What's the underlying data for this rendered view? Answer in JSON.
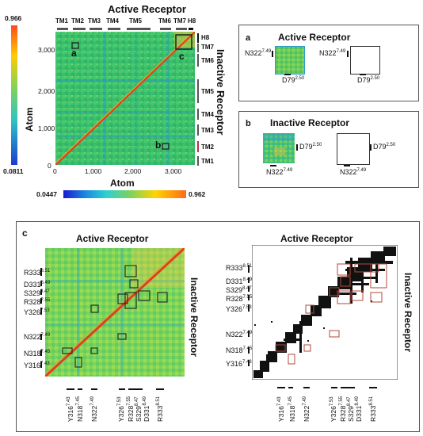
{
  "top_heatmap": {
    "title": "Active Receptor",
    "side_title": "Inactive Receptor",
    "x_label": "Atom",
    "y_label": "Atom",
    "x_ticks": [
      "0",
      "1,000",
      "2,000",
      "3,000"
    ],
    "y_ticks": [
      "0",
      "1,000",
      "2,000",
      "3,000"
    ],
    "tm_top": [
      "TM1",
      "TM2",
      "TM3",
      "TM4",
      "TM5",
      "TM6",
      "TM7",
      "H8"
    ],
    "tm_right": [
      "H8",
      "TM7",
      "TM6",
      "TM5",
      "TM4",
      "TM3",
      "TM2",
      "TM1"
    ],
    "box_labels": [
      "a",
      "b",
      "c"
    ],
    "left_scale": {
      "max": "0.966",
      "min": "0.0811"
    },
    "bottom_scale": {
      "min": "0.0447",
      "max": "0.962"
    }
  },
  "panel_a": {
    "letter": "a",
    "title": "Active Receptor",
    "left_label": "N322",
    "left_sup": "7.49",
    "right_label": "N322",
    "right_sup": "7.49",
    "bottom_label": "D79",
    "bottom_sup": "2.50",
    "bottom_label2": "D79",
    "bottom_sup2": "2.50"
  },
  "panel_b": {
    "letter": "b",
    "title": "Inactive Receptor",
    "right_label": "D79",
    "right_sup": "2.50",
    "right_label2": "D79",
    "right_sup2": "2.50",
    "bottom_label": "N322",
    "bottom_sup": "7.49",
    "bottom_label2": "N322",
    "bottom_sup2": "7.49"
  },
  "panel_c": {
    "letter": "c",
    "left_title": "Active Receptor",
    "right_title": "Active Receptor",
    "side_title": "Inactive Receptor",
    "residues_y": [
      {
        "name": "R333",
        "sup": "8.51"
      },
      {
        "name": "D331",
        "sup": "8.49"
      },
      {
        "name": "S329",
        "sup": "8.47"
      },
      {
        "name": "R328",
        "sup": "7.55"
      },
      {
        "name": "Y326",
        "sup": "7.53"
      },
      {
        "name": "N322",
        "sup": "7.49"
      },
      {
        "name": "N318",
        "sup": "7.45"
      },
      {
        "name": "Y316",
        "sup": "7.43"
      }
    ],
    "residues_x": [
      {
        "name": "Y316",
        "sup": "7.43"
      },
      {
        "name": "N318",
        "sup": "7.45"
      },
      {
        "name": "N322",
        "sup": "7.49"
      },
      {
        "name": "Y326",
        "sup": "7.53"
      },
      {
        "name": "R328",
        "sup": "7.55"
      },
      {
        "name": "S329",
        "sup": "8.47"
      },
      {
        "name": "D331",
        "sup": "8.49"
      },
      {
        "name": "R333",
        "sup": "8.51"
      }
    ]
  },
  "colors": {
    "heat_base": "#3cc46a",
    "heat_high": "#e8c83a",
    "diagonal": "#e0401c",
    "box_outline": "#222222",
    "contact_outline": "#b04a3a"
  }
}
